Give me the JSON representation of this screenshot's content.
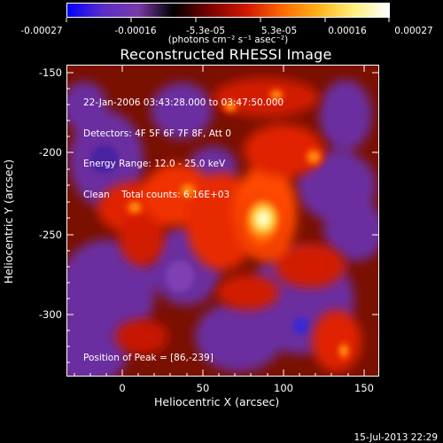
{
  "colorbar": {
    "gradient_stops": [
      "#0000ff",
      "#5a2cc8",
      "#7a3aa8",
      "#000000",
      "#7a0000",
      "#d21a00",
      "#ff6a00",
      "#ffb21a",
      "#fff07a",
      "#ffffff"
    ],
    "tick_labels": [
      "-0.00027",
      "-0.00016",
      "-5.3e-05",
      "5.3e-05",
      "0.00016",
      "0.00027"
    ],
    "units": "(photons cm⁻² s⁻¹ asec⁻²)"
  },
  "plot": {
    "title": "Reconstructed RHESSI Image",
    "x_axis": {
      "title": "Heliocentric X (arcsec)",
      "tick_labels": [
        "0",
        "50",
        "100",
        "150"
      ]
    },
    "y_axis": {
      "title": "Heliocentric Y (arcsec)",
      "tick_labels": [
        "-150",
        "-200",
        "-250",
        "-300"
      ]
    },
    "info_lines": [
      "22-Jan-2006 03:43:28.000 to 03:47:50.000",
      "Detectors: 4F 5F 6F 7F 8F, Att 0",
      "Energy Range: 12.0 - 25.0 keV",
      "Clean    Total counts: 6.16E+03"
    ],
    "peak_text": "Position of Peak = [86,-239]"
  },
  "footer": {
    "timestamp": "15-Jul-2013 22:29"
  }
}
